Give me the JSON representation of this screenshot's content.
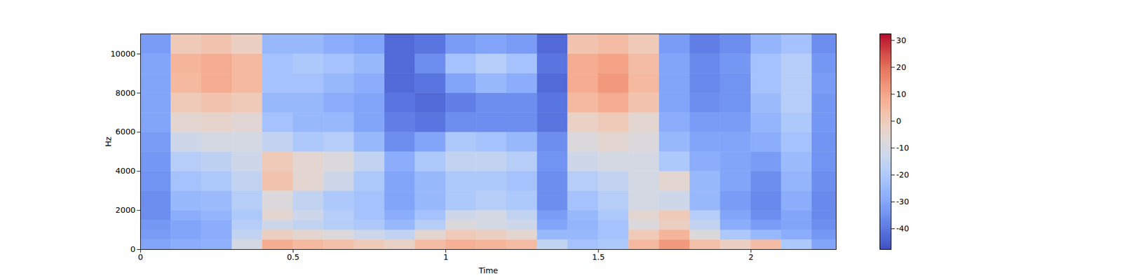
{
  "chart_data": {
    "type": "heatmap",
    "x_label": "Time",
    "y_label": "Hz",
    "xlim": [
      0,
      2.279
    ],
    "xticks": [
      0,
      0.5,
      1,
      1.5,
      2
    ],
    "ylim": [
      0,
      11025
    ],
    "yticks": [
      0,
      2000,
      4000,
      6000,
      8000,
      10000
    ],
    "time_bins": [
      0,
      0.1,
      0.2,
      0.3,
      0.4,
      0.5,
      0.6,
      0.7,
      0.8,
      0.9,
      1.0,
      1.1,
      1.2,
      1.3,
      1.4,
      1.5,
      1.6,
      1.7,
      1.8,
      1.9,
      2.0,
      2.1,
      2.2,
      2.3
    ],
    "freq_bins": [
      0,
      500,
      1000,
      1500,
      2000,
      3000,
      4000,
      5000,
      6000,
      7000,
      8000,
      9000,
      10000,
      11025
    ],
    "cells": [
      [
        -30,
        -28,
        -27,
        -10,
        8,
        5,
        3,
        0,
        -3,
        4,
        7,
        6,
        4,
        -15,
        -22,
        -20,
        5,
        12,
        3,
        -2,
        4,
        -20,
        -30
      ],
      [
        -32,
        -30,
        -28,
        -15,
        -2,
        -5,
        -8,
        -12,
        -15,
        -5,
        0,
        -2,
        -5,
        -25,
        -25,
        -22,
        0,
        6,
        -8,
        -20,
        -25,
        -28,
        -33
      ],
      [
        -33,
        -30,
        -28,
        -18,
        -12,
        -15,
        -18,
        -20,
        -25,
        -18,
        -8,
        -10,
        -12,
        -30,
        -26,
        -22,
        -8,
        -2,
        -15,
        -28,
        -32,
        -30,
        -35
      ],
      [
        -35,
        -28,
        -26,
        -20,
        -5,
        -12,
        -18,
        -22,
        -28,
        -22,
        -12,
        -10,
        -15,
        -32,
        -25,
        -20,
        -5,
        0,
        -18,
        -30,
        -35,
        -30,
        -36
      ],
      [
        -35,
        -25,
        -24,
        -18,
        -8,
        -15,
        -20,
        -22,
        -30,
        -25,
        -20,
        -18,
        -20,
        -35,
        -22,
        -18,
        -10,
        -12,
        -25,
        -32,
        -36,
        -28,
        -36
      ],
      [
        -34,
        -22,
        -20,
        -15,
        2,
        -5,
        -12,
        -20,
        -30,
        -25,
        -20,
        -20,
        -22,
        -35,
        -18,
        -15,
        -10,
        -5,
        -25,
        -30,
        -35,
        -26,
        -35
      ],
      [
        -33,
        -18,
        -16,
        -12,
        0,
        -5,
        -8,
        -15,
        -28,
        -20,
        -15,
        -15,
        -18,
        -34,
        -12,
        -10,
        -10,
        -20,
        -28,
        -30,
        -32,
        -24,
        -34
      ],
      [
        -32,
        -12,
        -10,
        -10,
        -15,
        -20,
        -18,
        -25,
        -35,
        -30,
        -20,
        -22,
        -25,
        -35,
        -8,
        -5,
        -8,
        -25,
        -30,
        -30,
        -28,
        -22,
        -34
      ],
      [
        -30,
        -5,
        -4,
        -6,
        -22,
        -25,
        -25,
        -30,
        -38,
        -40,
        -35,
        -35,
        -35,
        -40,
        -3,
        0,
        -5,
        -28,
        -32,
        -32,
        -26,
        -20,
        -33
      ],
      [
        -30,
        0,
        2,
        0,
        -25,
        -25,
        -28,
        -30,
        -40,
        -42,
        -38,
        -35,
        -35,
        -40,
        5,
        8,
        2,
        -30,
        -35,
        -34,
        -24,
        -18,
        -33
      ],
      [
        -30,
        5,
        8,
        5,
        -22,
        -22,
        -25,
        -28,
        -42,
        -40,
        -30,
        -25,
        -28,
        -42,
        8,
        12,
        5,
        -30,
        -36,
        -34,
        -22,
        -18,
        -32
      ],
      [
        -30,
        6,
        8,
        5,
        -22,
        -20,
        -22,
        -25,
        -42,
        -35,
        -22,
        -18,
        -22,
        -40,
        8,
        10,
        4,
        -30,
        -36,
        -33,
        -22,
        -18,
        -33
      ],
      [
        -32,
        0,
        2,
        -2,
        -25,
        -25,
        -28,
        -30,
        -42,
        -40,
        -32,
        -30,
        -32,
        -42,
        2,
        4,
        0,
        -32,
        -38,
        -35,
        -26,
        -22,
        -35
      ]
    ],
    "colorbar": {
      "range": [
        -47.7,
        32.4
      ],
      "ticks": [
        -40,
        -30,
        -20,
        -10,
        0,
        10,
        20,
        30
      ]
    }
  }
}
